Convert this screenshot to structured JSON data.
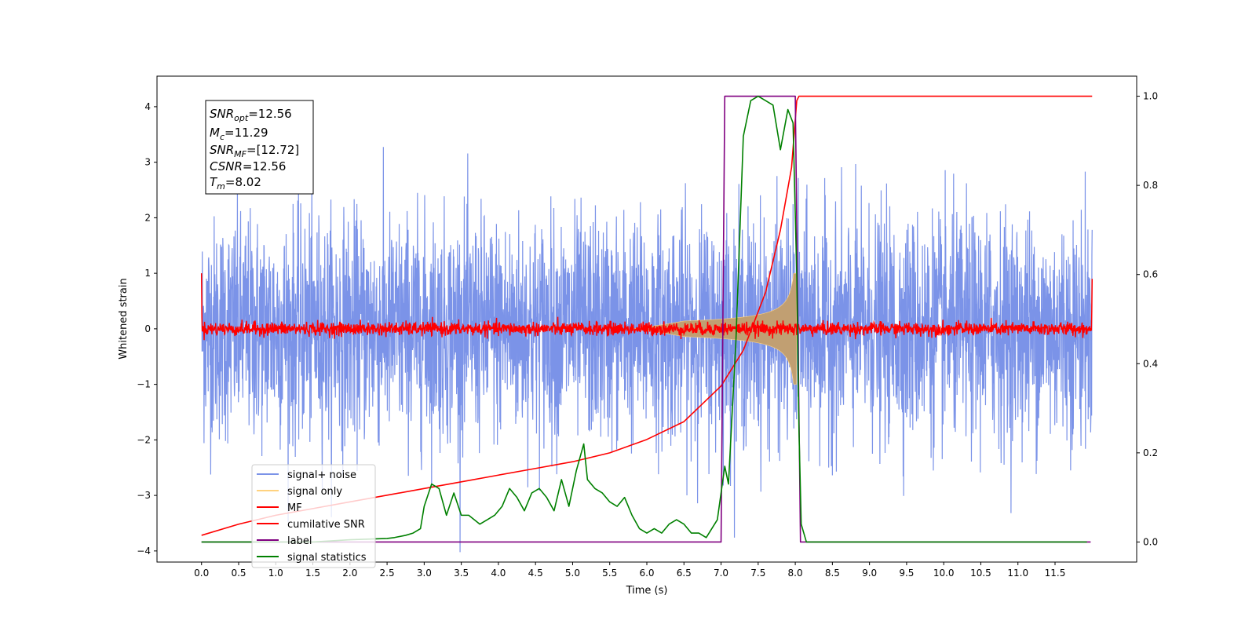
{
  "chart_data": {
    "type": "line",
    "title": "",
    "xlabel": "Time (s)",
    "ylabel": "Whitened strain",
    "xlim": [
      -0.6,
      12.6
    ],
    "ylim": [
      -4.2,
      4.55
    ],
    "y2lim": [
      -0.045,
      1.045
    ],
    "x_ticks": [
      0.0,
      0.5,
      1.0,
      1.5,
      2.0,
      2.5,
      3.0,
      3.5,
      4.0,
      4.5,
      5.0,
      5.5,
      6.0,
      6.5,
      7.0,
      7.5,
      8.0,
      8.5,
      9.0,
      9.5,
      10.0,
      10.5,
      11.0,
      11.5
    ],
    "x_tick_labels": [
      "0.0",
      "0.5",
      "1.0",
      "1.5",
      "2.0",
      "2.5",
      "3.0",
      "3.5",
      "4.0",
      "4.5",
      "5.0",
      "5.5",
      "6.0",
      "6.5",
      "7.0",
      "7.5",
      "8.0",
      "8.5",
      "9.0",
      "9.5",
      "10.0",
      "10.5",
      "11.0",
      "11.5"
    ],
    "y_ticks": [
      -4,
      -3,
      -2,
      -1,
      0,
      1,
      2,
      3,
      4
    ],
    "y_tick_labels": [
      "−4",
      "−3",
      "−2",
      "−1",
      "0",
      "1",
      "2",
      "3",
      "4"
    ],
    "y2_ticks": [
      0.0,
      0.2,
      0.4,
      0.6,
      0.8,
      1.0
    ],
    "y2_tick_labels": [
      "0.0",
      "0.2",
      "0.4",
      "0.6",
      "0.8",
      "1.0"
    ],
    "grid": false,
    "legend": "lower-left",
    "series": [
      {
        "name": "signal+ noise",
        "color": "#7b93e8",
        "axis": "left",
        "kind": "noise",
        "x_range": [
          0.0,
          12.0
        ],
        "std": 1.0
      },
      {
        "name": "signal only",
        "color": "#ffd27f",
        "axis": "left",
        "kind": "chirp",
        "t_merge": 8.02,
        "peak_amplitude": 1.0
      },
      {
        "name": "MF",
        "color": "#ff0000",
        "axis": "left",
        "kind": "mf",
        "x_range": [
          0.0,
          12.0
        ],
        "std": 0.06
      },
      {
        "name": "cumilative SNR",
        "color": "#ff0000",
        "axis": "right",
        "x": [
          0.0,
          0.5,
          1.0,
          1.5,
          2.0,
          2.5,
          3.0,
          3.5,
          4.0,
          4.5,
          5.0,
          5.5,
          6.0,
          6.5,
          7.0,
          7.3,
          7.6,
          7.8,
          7.95,
          8.02,
          8.05,
          12.0
        ],
        "y": [
          0.015,
          0.04,
          0.06,
          0.075,
          0.09,
          0.105,
          0.12,
          0.135,
          0.15,
          0.165,
          0.18,
          0.2,
          0.23,
          0.27,
          0.35,
          0.43,
          0.56,
          0.7,
          0.84,
          0.99,
          1.0,
          1.0
        ]
      },
      {
        "name": "label",
        "color": "#800080",
        "axis": "right",
        "x": [
          0.0,
          7.0,
          7.05,
          8.0,
          8.07,
          11.98
        ],
        "y": [
          0.0,
          0.0,
          1.0,
          1.0,
          0.0,
          0.0
        ]
      },
      {
        "name": "signal statistics",
        "color": "#008000",
        "axis": "right",
        "x": [
          0.0,
          0.5,
          1.0,
          1.5,
          2.0,
          2.5,
          2.6,
          2.75,
          2.85,
          2.95,
          3.0,
          3.1,
          3.2,
          3.3,
          3.4,
          3.5,
          3.6,
          3.75,
          3.85,
          3.95,
          4.05,
          4.15,
          4.25,
          4.35,
          4.45,
          4.55,
          4.65,
          4.75,
          4.85,
          4.95,
          5.05,
          5.15,
          5.2,
          5.3,
          5.4,
          5.5,
          5.6,
          5.7,
          5.8,
          5.9,
          6.0,
          6.1,
          6.2,
          6.3,
          6.4,
          6.5,
          6.6,
          6.7,
          6.8,
          6.95,
          7.05,
          7.1,
          7.2,
          7.3,
          7.4,
          7.5,
          7.6,
          7.7,
          7.8,
          7.9,
          7.97,
          8.02,
          8.05,
          8.08,
          8.15,
          8.5,
          9.0,
          10.0,
          11.0,
          11.93
        ],
        "y": [
          0.0,
          0.0,
          0.0,
          0.0,
          0.005,
          0.008,
          0.01,
          0.015,
          0.02,
          0.03,
          0.08,
          0.13,
          0.12,
          0.06,
          0.11,
          0.06,
          0.06,
          0.04,
          0.05,
          0.06,
          0.08,
          0.12,
          0.1,
          0.07,
          0.11,
          0.12,
          0.1,
          0.07,
          0.14,
          0.08,
          0.16,
          0.22,
          0.14,
          0.12,
          0.11,
          0.09,
          0.08,
          0.1,
          0.06,
          0.03,
          0.02,
          0.03,
          0.02,
          0.04,
          0.05,
          0.04,
          0.02,
          0.02,
          0.01,
          0.05,
          0.17,
          0.13,
          0.45,
          0.91,
          0.99,
          1.0,
          0.99,
          0.98,
          0.88,
          0.97,
          0.94,
          0.6,
          0.25,
          0.04,
          0.0,
          0.0,
          0.0,
          0.0,
          0.0,
          0.0
        ]
      }
    ],
    "annotation": {
      "lines": [
        {
          "base": "SNR",
          "sub": "opt",
          "value": "=12.56"
        },
        {
          "base": "M",
          "sub": "c",
          "value": "=11.29"
        },
        {
          "base": "SNR",
          "sub": "MF",
          "value": "=[12.72]"
        },
        {
          "base": "CSNR",
          "sub": "",
          "value": "=12.56"
        },
        {
          "base": "T",
          "sub": "m",
          "value": "=8.02"
        }
      ]
    }
  }
}
